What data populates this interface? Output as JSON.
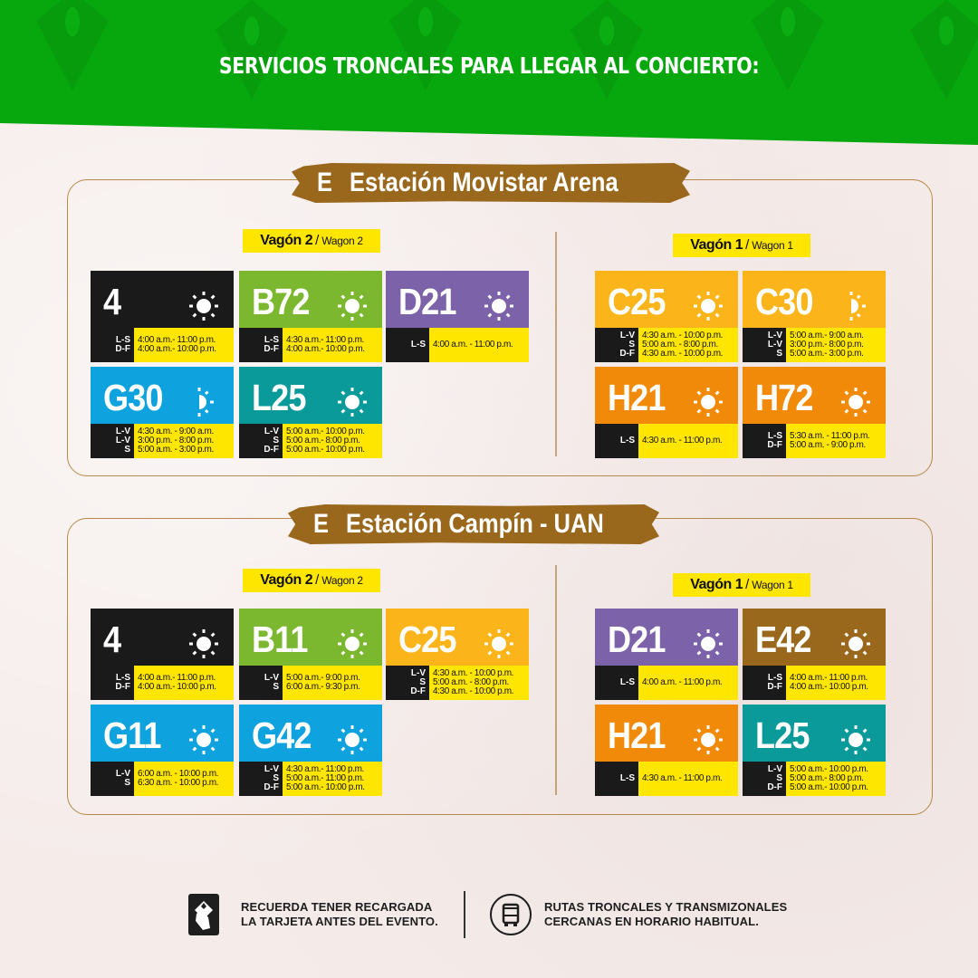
{
  "header": {
    "title": "SERVICIOS TRONCALES PARA LLEGAR AL CONCIERTO:",
    "background_color": "#06a80d"
  },
  "stations": [
    {
      "prefix": "E",
      "name": "Estación Movistar  Arena",
      "wagons": [
        {
          "label": "Vagón 2",
          "sub": "Wagon 2",
          "routes": [
            {
              "code": "4",
              "color": "#1a1a1a",
              "icon": "sun-icon",
              "days": [
                "L-S",
                "D-F"
              ],
              "hours": [
                "4:00 a.m.- 11:00 p.m.",
                "4:00 a.m.- 10:00 p.m."
              ]
            },
            {
              "code": "B72",
              "color": "#7bb72f",
              "icon": "sun-icon",
              "days": [
                "L-S",
                "D-F"
              ],
              "hours": [
                "4:30 a.m.- 11:00 p.m.",
                "4:00 a.m.- 10:00 p.m."
              ]
            },
            {
              "code": "D21",
              "color": "#7c62a8",
              "icon": "sun-icon",
              "days": [
                "L-S"
              ],
              "hours": [
                "4:00 a.m. - 11:00 p.m."
              ]
            },
            {
              "code": "G30",
              "color": "#0ea2df",
              "icon": "half-sun-icon",
              "days": [
                "L-V",
                "L-V",
                "S"
              ],
              "hours": [
                "4:30 a.m. - 9:00 a.m.",
                "3:00 p.m. - 8:00 p.m.",
                "5:00 a.m. - 3:00 p.m."
              ]
            },
            {
              "code": "L25",
              "color": "#0a9a9a",
              "icon": "sun-icon",
              "days": [
                "L-V",
                "S",
                "D-F"
              ],
              "hours": [
                "5:00 a.m.- 10:00 p.m.",
                "5:00 a.m.- 8:00 p.m.",
                "5:00 a.m.- 10:00 p.m."
              ]
            }
          ]
        },
        {
          "label": "Vagón 1",
          "sub": "Wagon 1",
          "routes": [
            {
              "code": "C25",
              "color": "#fbb51b",
              "icon": "sun-icon",
              "days": [
                "L-V",
                "S",
                "D-F"
              ],
              "hours": [
                "4:30 a.m. - 10:00 p.m.",
                "5:00 a.m. - 8:00 p.m.",
                "4:30 a.m. - 10:00 p.m."
              ]
            },
            {
              "code": "C30",
              "color": "#fbb51b",
              "icon": "half-sun-icon",
              "days": [
                "L-V",
                "L-V",
                "S"
              ],
              "hours": [
                "5:00 a.m.- 9:00 a.m.",
                "3:00 p.m.- 8:00 p.m.",
                "5:00 a.m.- 3:00 p.m."
              ]
            },
            {
              "code": "H21",
              "color": "#f08a08",
              "icon": "sun-icon",
              "days": [
                "L-S"
              ],
              "hours": [
                "4:30 a.m. - 11:00 p.m."
              ]
            },
            {
              "code": "H72",
              "color": "#f08a08",
              "icon": "sun-icon",
              "days": [
                "L-S",
                "D-F"
              ],
              "hours": [
                "5:30 a.m. - 11:00 p.m.",
                "5:00 a.m. -  9:00 p.m."
              ]
            }
          ]
        }
      ]
    },
    {
      "prefix": "E",
      "name": "Estación Campín - UAN",
      "wagons": [
        {
          "label": "Vagón 2",
          "sub": "Wagon 2",
          "routes": [
            {
              "code": "4",
              "color": "#1a1a1a",
              "icon": "sun-icon",
              "days": [
                "L-S",
                "D-F"
              ],
              "hours": [
                "4:00 a.m.- 11:00 p.m.",
                "4:00 a.m.- 10:00 p.m."
              ]
            },
            {
              "code": "B11",
              "color": "#7bb72f",
              "icon": "sun-icon",
              "days": [
                "L-V",
                "S"
              ],
              "hours": [
                "5:00 a.m.- 9:00 p.m.",
                "6:00 a.m.- 9:30 p.m."
              ]
            },
            {
              "code": "C25",
              "color": "#fbb51b",
              "icon": "sun-icon",
              "days": [
                "L-V",
                "S",
                "D-F"
              ],
              "hours": [
                "4:30 a.m. - 10:00 p.m.",
                "5:00 a.m. - 8:00 p.m.",
                "4:30 a.m. - 10:00 p.m."
              ]
            },
            {
              "code": "G11",
              "color": "#0ea2df",
              "icon": "sun-icon",
              "days": [
                "L-V",
                "S"
              ],
              "hours": [
                "6:00 a.m. - 10:00 p.m.",
                "6:30 a.m. - 10:00 p.m."
              ]
            },
            {
              "code": "G42",
              "color": "#0ea2df",
              "icon": "sun-icon",
              "days": [
                "L-V",
                "S",
                "D-F"
              ],
              "hours": [
                "4:30 a.m.- 11:00 p.m.",
                "5:00 a.m.- 11:00 p.m.",
                "5:00 a.m.- 10:00 p.m."
              ]
            }
          ]
        },
        {
          "label": "Vagón 1",
          "sub": "Wagon 1",
          "routes": [
            {
              "code": "D21",
              "color": "#7c62a8",
              "icon": "sun-icon",
              "days": [
                "L-S"
              ],
              "hours": [
                "4:00 a.m. - 11:00 p.m."
              ]
            },
            {
              "code": "E42",
              "color": "#99681c",
              "icon": "sun-icon",
              "days": [
                "L-S",
                "D-F"
              ],
              "hours": [
                "4:00 a.m.- 11:00 p.m.",
                "4:00 a.m.- 10:00 p.m."
              ]
            },
            {
              "code": "H21",
              "color": "#f08a08",
              "icon": "sun-icon",
              "days": [
                "L-S"
              ],
              "hours": [
                "4:30 a.m. - 11:00 p.m."
              ]
            },
            {
              "code": "L25",
              "color": "#0a9a9a",
              "icon": "sun-icon",
              "days": [
                "L-V",
                "S",
                "D-F"
              ],
              "hours": [
                "5:00 a.m.- 10:00 p.m.",
                "5:00 a.m.- 8:00 p.m.",
                "5:00 a.m.- 10:00 p.m."
              ]
            }
          ]
        }
      ]
    }
  ],
  "footer": {
    "card_note": [
      "RECUERDA TENER RECARGADA",
      "LA TARJETA ANTES DEL EVENTO."
    ],
    "bus_note": [
      "RUTAS TRONCALES Y TRANSMIZONALES",
      "CERCANAS EN HORARIO HABITUAL."
    ],
    "card_icon": "recharge-card-icon",
    "bus_icon": "bus-icon"
  },
  "colors": {
    "station_brown": "#99681c",
    "wagon_yellow": "#ffe600",
    "frame_border": "#b48a4a",
    "days_black": "#1a1a1a"
  }
}
